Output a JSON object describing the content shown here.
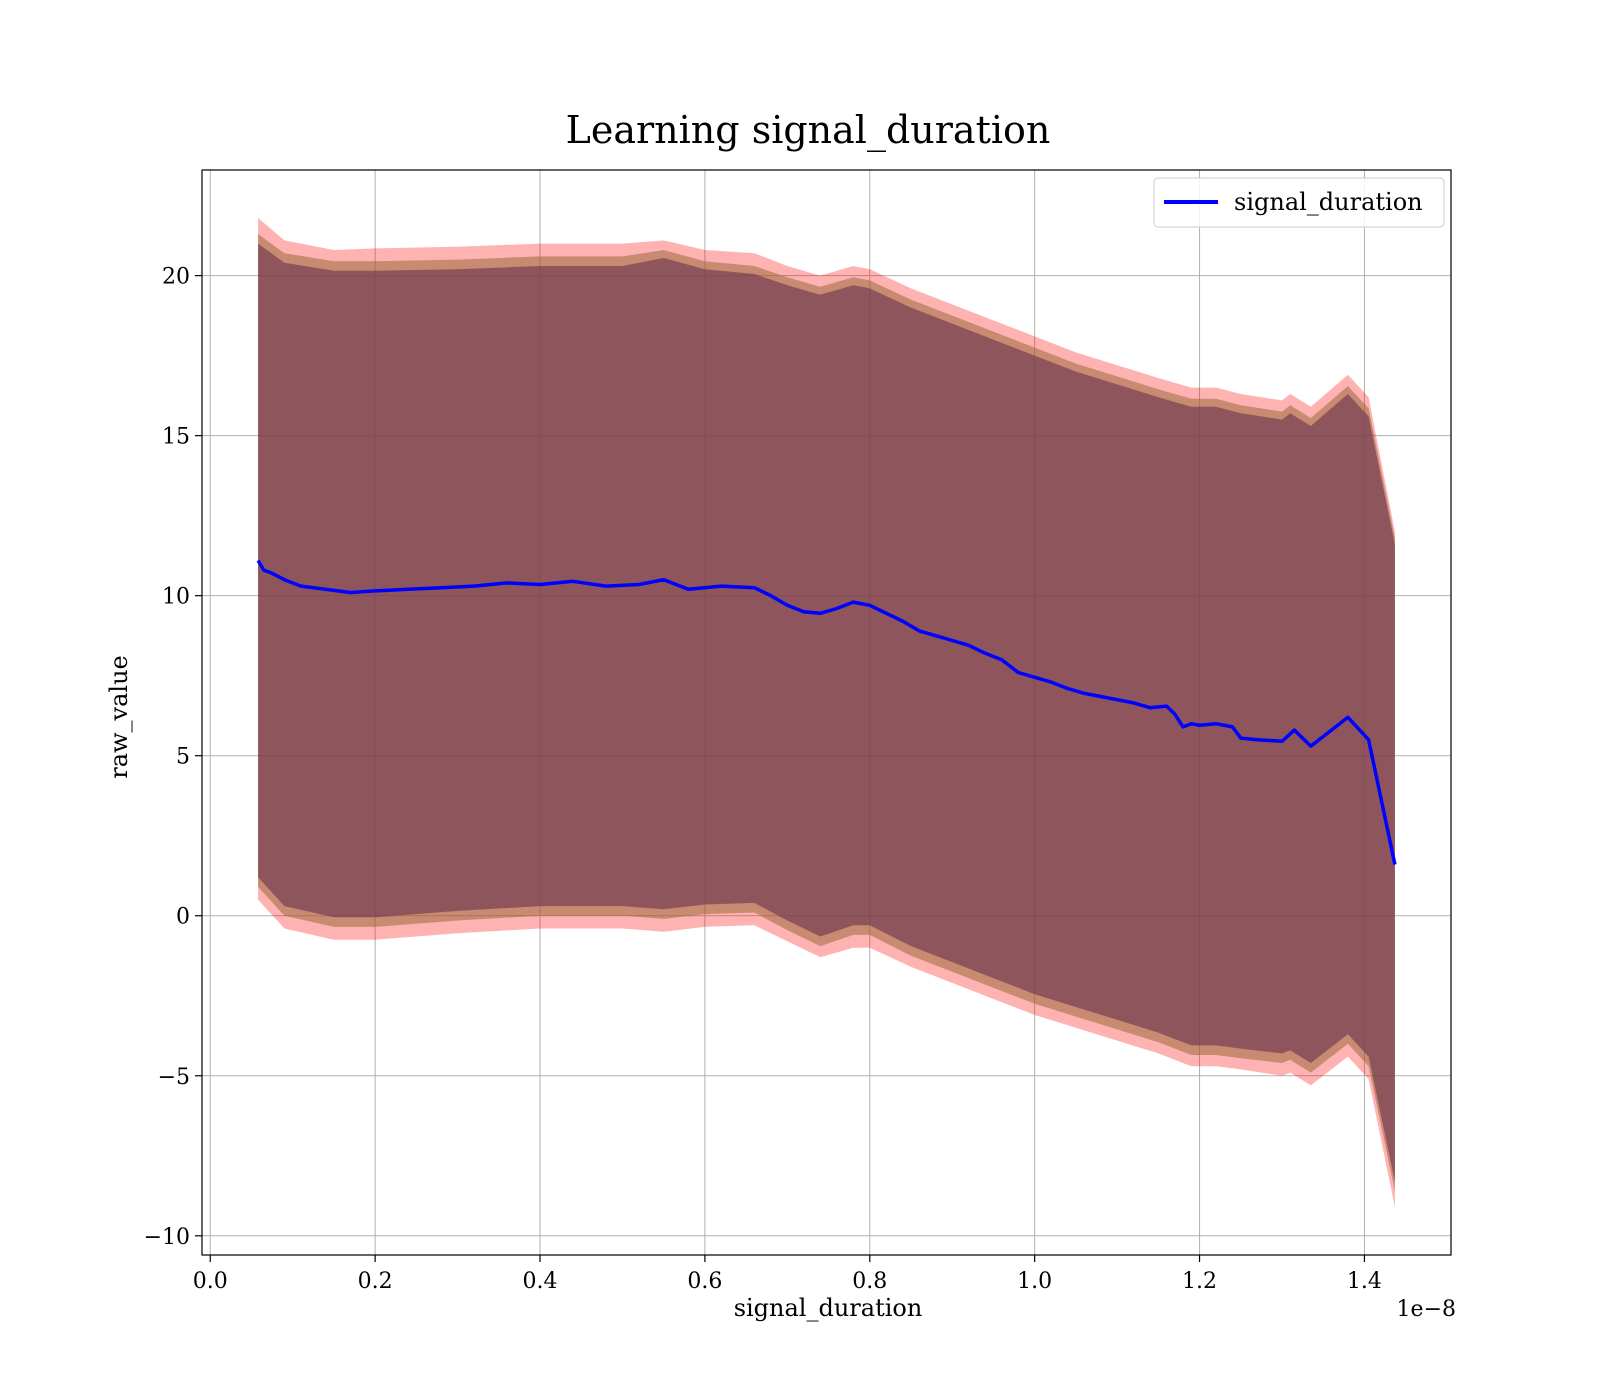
{
  "chart_data": {
    "type": "line",
    "title": "Learning signal_duration",
    "xlabel": "signal_duration",
    "ylabel": "raw_value",
    "x_offset_label": "1e−8",
    "xlim": [
      -0.01,
      1.505
    ],
    "ylim": [
      -10.6,
      23.3
    ],
    "xticks": [
      0.0,
      0.2,
      0.4,
      0.6,
      0.8,
      1.0,
      1.2,
      1.4
    ],
    "xtick_labels": [
      "0.0",
      "0.2",
      "0.4",
      "0.6",
      "0.8",
      "1.0",
      "1.2",
      "1.4"
    ],
    "yticks": [
      -10,
      -5,
      0,
      5,
      10,
      15,
      20
    ],
    "ytick_labels": [
      "−10",
      "−5",
      "0",
      "5",
      "10",
      "15",
      "20"
    ],
    "grid": true,
    "legend": {
      "position": "top-right",
      "entries": [
        "signal_duration"
      ]
    },
    "series": [
      {
        "name": "signal_duration",
        "color": "#0000ff",
        "x": [
          0.058,
          0.065,
          0.075,
          0.09,
          0.11,
          0.14,
          0.17,
          0.2,
          0.24,
          0.28,
          0.32,
          0.36,
          0.4,
          0.44,
          0.48,
          0.52,
          0.55,
          0.58,
          0.62,
          0.66,
          0.68,
          0.7,
          0.72,
          0.74,
          0.76,
          0.78,
          0.8,
          0.82,
          0.84,
          0.86,
          0.88,
          0.9,
          0.92,
          0.94,
          0.96,
          0.98,
          1.0,
          1.02,
          1.04,
          1.06,
          1.08,
          1.1,
          1.12,
          1.14,
          1.16,
          1.17,
          1.18,
          1.19,
          1.2,
          1.22,
          1.24,
          1.25,
          1.27,
          1.3,
          1.315,
          1.335,
          1.36,
          1.38,
          1.405,
          1.437
        ],
        "y": [
          11.1,
          10.8,
          10.7,
          10.5,
          10.3,
          10.2,
          10.1,
          10.15,
          10.2,
          10.25,
          10.3,
          10.4,
          10.35,
          10.45,
          10.3,
          10.35,
          10.5,
          10.2,
          10.3,
          10.25,
          10.0,
          9.7,
          9.5,
          9.45,
          9.6,
          9.8,
          9.7,
          9.45,
          9.2,
          8.9,
          8.75,
          8.6,
          8.45,
          8.2,
          8.0,
          7.6,
          7.45,
          7.3,
          7.1,
          6.95,
          6.85,
          6.75,
          6.65,
          6.5,
          6.55,
          6.3,
          5.9,
          6.0,
          5.95,
          6.0,
          5.9,
          5.55,
          5.5,
          5.45,
          5.8,
          5.3,
          5.8,
          6.2,
          5.5,
          1.6
        ]
      }
    ],
    "bands": [
      {
        "color": "#ff0000",
        "opacity": 0.3,
        "x": [
          0.058,
          0.09,
          0.15,
          0.2,
          0.3,
          0.4,
          0.5,
          0.55,
          0.6,
          0.66,
          0.7,
          0.74,
          0.78,
          0.8,
          0.85,
          0.9,
          0.95,
          1.0,
          1.05,
          1.1,
          1.15,
          1.19,
          1.22,
          1.25,
          1.3,
          1.31,
          1.335,
          1.38,
          1.405,
          1.437
        ],
        "upper": [
          21.8,
          21.1,
          20.8,
          20.85,
          20.9,
          21.0,
          21.0,
          21.1,
          20.8,
          20.7,
          20.3,
          20.0,
          20.3,
          20.2,
          19.6,
          19.1,
          18.6,
          18.1,
          17.6,
          17.2,
          16.8,
          16.5,
          16.5,
          16.3,
          16.1,
          16.3,
          15.9,
          16.9,
          16.2,
          12.0
        ],
        "lower": [
          0.5,
          -0.4,
          -0.75,
          -0.75,
          -0.55,
          -0.4,
          -0.4,
          -0.5,
          -0.35,
          -0.3,
          -0.8,
          -1.3,
          -1.0,
          -1.0,
          -1.6,
          -2.1,
          -2.6,
          -3.1,
          -3.5,
          -3.9,
          -4.3,
          -4.7,
          -4.7,
          -4.8,
          -5.0,
          -4.9,
          -5.3,
          -4.4,
          -5.1,
          -9.1
        ]
      },
      {
        "color": "#9a6a3a",
        "opacity": 0.55,
        "x": [
          0.058,
          0.09,
          0.15,
          0.2,
          0.3,
          0.4,
          0.5,
          0.55,
          0.6,
          0.66,
          0.7,
          0.74,
          0.78,
          0.8,
          0.85,
          0.9,
          0.95,
          1.0,
          1.05,
          1.1,
          1.15,
          1.19,
          1.22,
          1.25,
          1.3,
          1.31,
          1.335,
          1.38,
          1.405,
          1.437
        ],
        "upper": [
          21.3,
          20.7,
          20.45,
          20.45,
          20.5,
          20.6,
          20.6,
          20.8,
          20.45,
          20.3,
          19.95,
          19.65,
          19.95,
          19.85,
          19.25,
          18.75,
          18.25,
          17.75,
          17.25,
          16.85,
          16.45,
          16.15,
          16.15,
          15.95,
          15.75,
          15.95,
          15.55,
          16.55,
          15.85,
          11.8
        ],
        "lower": [
          0.9,
          0.0,
          -0.35,
          -0.35,
          -0.15,
          0.0,
          0.0,
          -0.1,
          0.05,
          0.1,
          -0.45,
          -0.95,
          -0.6,
          -0.6,
          -1.25,
          -1.75,
          -2.25,
          -2.75,
          -3.15,
          -3.55,
          -3.95,
          -4.35,
          -4.35,
          -4.45,
          -4.6,
          -4.5,
          -4.9,
          -4.0,
          -4.7,
          -8.6
        ]
      },
      {
        "color": "#6a3550",
        "opacity": 0.62,
        "x": [
          0.058,
          0.09,
          0.15,
          0.2,
          0.3,
          0.4,
          0.5,
          0.55,
          0.6,
          0.66,
          0.7,
          0.74,
          0.78,
          0.8,
          0.85,
          0.9,
          0.95,
          1.0,
          1.05,
          1.1,
          1.15,
          1.19,
          1.22,
          1.25,
          1.3,
          1.31,
          1.335,
          1.38,
          1.405,
          1.437
        ],
        "upper": [
          21.0,
          20.4,
          20.15,
          20.15,
          20.2,
          20.3,
          20.3,
          20.55,
          20.2,
          20.05,
          19.7,
          19.4,
          19.7,
          19.6,
          19.0,
          18.5,
          18.0,
          17.5,
          17.0,
          16.6,
          16.2,
          15.9,
          15.9,
          15.7,
          15.5,
          15.7,
          15.3,
          16.3,
          15.6,
          11.6
        ],
        "lower": [
          1.2,
          0.3,
          -0.05,
          -0.05,
          0.15,
          0.3,
          0.3,
          0.2,
          0.35,
          0.4,
          -0.15,
          -0.65,
          -0.3,
          -0.3,
          -0.95,
          -1.45,
          -1.95,
          -2.45,
          -2.85,
          -3.25,
          -3.65,
          -4.05,
          -4.05,
          -4.15,
          -4.3,
          -4.2,
          -4.6,
          -3.7,
          -4.4,
          -8.3
        ]
      }
    ]
  }
}
